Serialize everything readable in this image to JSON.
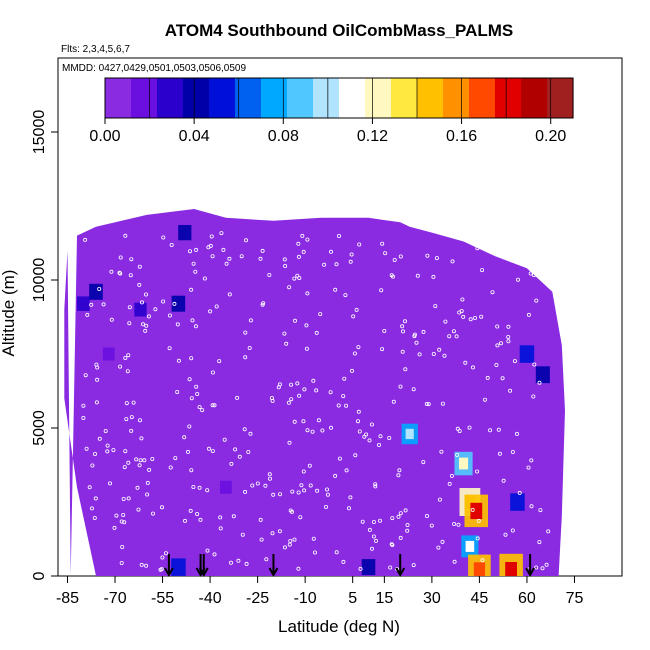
{
  "chart_data": {
    "type": "heatmap",
    "title": "ATOM4 Southbound OilCombMass_PALMS",
    "flights_label": "Flts: 2,3,4,5,6,7",
    "dates_label": "MMDD: 0427,0429,0501,0503,0506,0509",
    "xlabel": "Latitude (deg N)",
    "ylabel": "Altitude (m)",
    "xlim": [
      -88,
      90
    ],
    "ylim": [
      0,
      17500
    ],
    "x_ticks": [
      -85,
      -70,
      -55,
      -40,
      -25,
      -10,
      5,
      15,
      30,
      45,
      60,
      75
    ],
    "y_ticks": [
      0,
      5000,
      10000,
      15000
    ],
    "y_tick_labels": [
      "0",
      "5000",
      "10000",
      "15000"
    ],
    "colorbar": {
      "min": 0.0,
      "max": 0.21,
      "tick_values": [
        0.0,
        0.04,
        0.08,
        0.12,
        0.16,
        0.2
      ],
      "tick_labels": [
        "0.00",
        "0.04",
        "0.08",
        "0.12",
        "0.16",
        "0.20"
      ],
      "colors": [
        "#8a2be2",
        "#6a0fe0",
        "#2a00cc",
        "#0000a8",
        "#0010d8",
        "#0060f0",
        "#00a8ff",
        "#50c8ff",
        "#b0e4ff",
        "#ffffff",
        "#fff8c0",
        "#ffe840",
        "#ffc000",
        "#ff9000",
        "#ff4800",
        "#e00000",
        "#b00000",
        "#a02020"
      ]
    },
    "background_value": 0.005,
    "hotspots": [
      {
        "lat": -80,
        "alt": 9200,
        "value": 0.03
      },
      {
        "lat": -76,
        "alt": 9600,
        "value": 0.04
      },
      {
        "lat": -62,
        "alt": 9000,
        "value": 0.025
      },
      {
        "lat": -50,
        "alt": 9200,
        "value": 0.04
      },
      {
        "lat": -48,
        "alt": 11600,
        "value": 0.035
      },
      {
        "lat": -72,
        "alt": 7500,
        "value": 0.02
      },
      {
        "lat": -35,
        "alt": 3000,
        "value": 0.02
      },
      {
        "lat": 23,
        "alt": 4800,
        "value": 0.07
      },
      {
        "lat": 40,
        "alt": 3800,
        "value": 0.09
      },
      {
        "lat": 42,
        "alt": 2500,
        "value": 0.12
      },
      {
        "lat": 44,
        "alt": 2200,
        "value": 0.15
      },
      {
        "lat": 42,
        "alt": 1000,
        "value": 0.08
      },
      {
        "lat": 45,
        "alt": 200,
        "value": 0.14
      },
      {
        "lat": 55,
        "alt": 200,
        "value": 0.15
      },
      {
        "lat": 60,
        "alt": 7500,
        "value": 0.05
      },
      {
        "lat": 65,
        "alt": 6800,
        "value": 0.045
      },
      {
        "lat": 57,
        "alt": 2500,
        "value": 0.05
      },
      {
        "lat": -50,
        "alt": 300,
        "value": 0.05
      },
      {
        "lat": 10,
        "alt": 300,
        "value": 0.04
      }
    ],
    "profile_markers_lat": [
      -53,
      -43,
      -42,
      -20,
      20,
      61
    ]
  }
}
